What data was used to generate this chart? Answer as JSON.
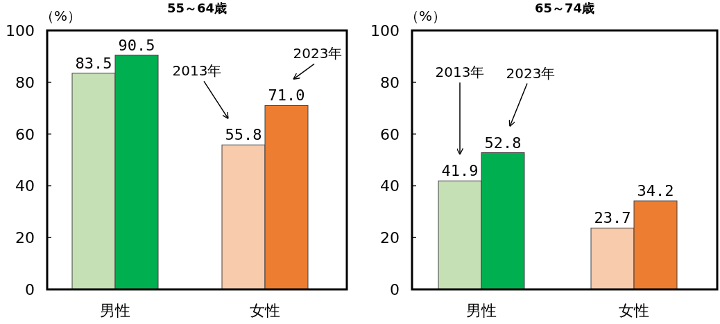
{
  "chart_data": [
    {
      "type": "bar",
      "title": "55～64歳",
      "ylabel": "（%）",
      "categories": [
        "男性",
        "女性"
      ],
      "ylim": [
        0,
        100
      ],
      "yticks": [
        0,
        20,
        40,
        60,
        80,
        100
      ],
      "grid": false,
      "annotations": [
        "2013年",
        "2023年"
      ],
      "series": [
        {
          "colors": [
            "#c5e0b4",
            "#f8cbad"
          ],
          "values": [
            83.5,
            55.8
          ],
          "value_labels": [
            "83.5",
            "55.8"
          ]
        },
        {
          "colors": [
            "#00b050",
            "#ed7d31"
          ],
          "values": [
            90.5,
            71.0
          ],
          "value_labels": [
            "90.5",
            "71.0"
          ]
        }
      ]
    },
    {
      "type": "bar",
      "title": "65～74歳",
      "ylabel": "（%）",
      "categories": [
        "男性",
        "女性"
      ],
      "ylim": [
        0,
        100
      ],
      "yticks": [
        0,
        20,
        40,
        60,
        80,
        100
      ],
      "grid": false,
      "annotations": [
        "2013年",
        "2023年"
      ],
      "series": [
        {
          "colors": [
            "#c5e0b4",
            "#f8cbad"
          ],
          "values": [
            41.9,
            23.7
          ],
          "value_labels": [
            "41.9",
            "23.7"
          ]
        },
        {
          "colors": [
            "#00b050",
            "#ed7d31"
          ],
          "values": [
            52.8,
            34.2
          ],
          "value_labels": [
            "52.8",
            "34.2"
          ]
        }
      ]
    }
  ]
}
